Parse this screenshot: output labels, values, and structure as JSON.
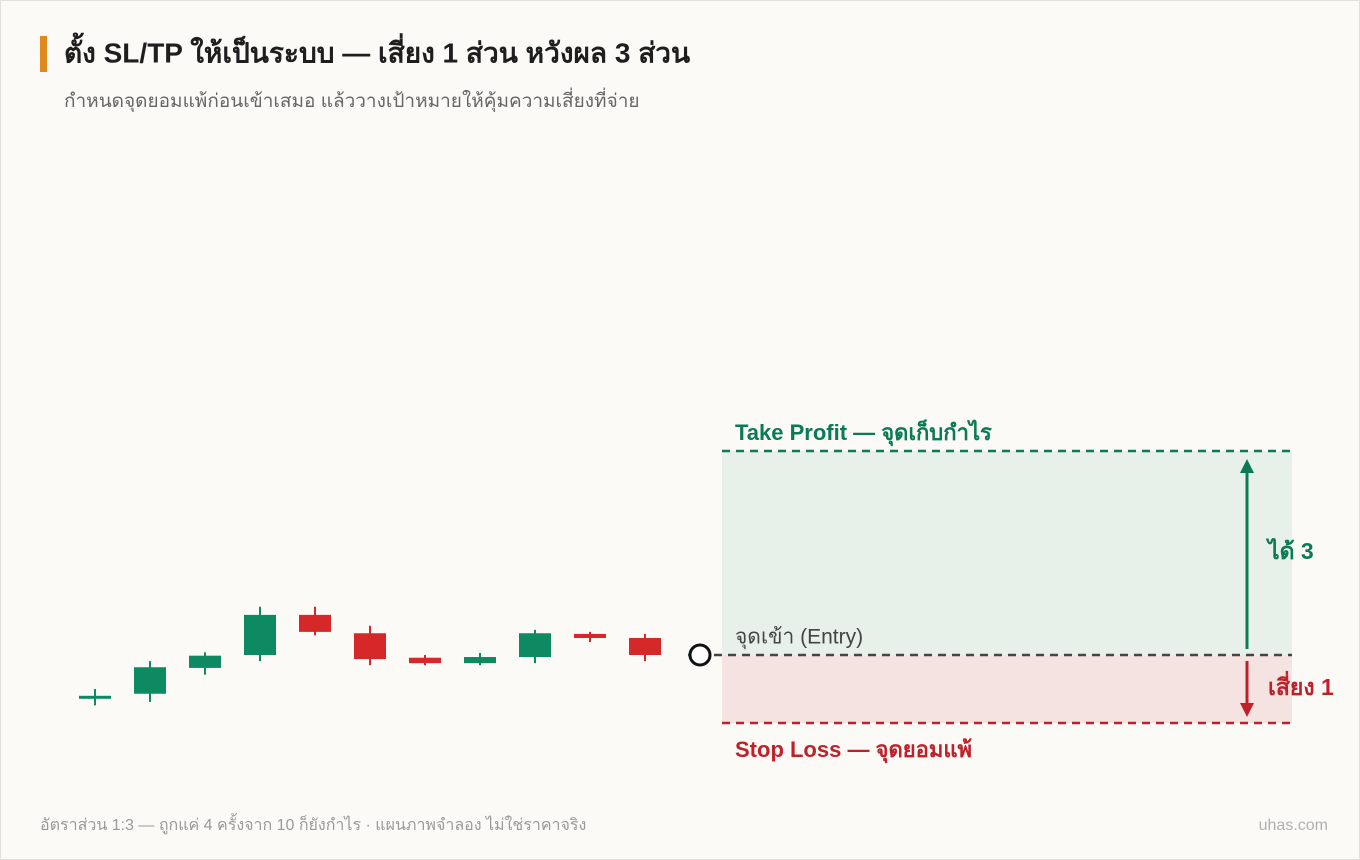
{
  "chart_data": {
    "type": "candlestick",
    "title": "ตั้ง SL/TP ให้เป็นระบบ — เสี่ยง 1 ส่วน หวังผล 3 ส่วน",
    "subtitle": "กำหนดจุดยอมแพ้ก่อนเข้าเสมอ แล้ววางเป้าหมายให้คุ้มความเสี่ยงที่จ่าย",
    "footer": "อัตราส่วน 1:3 — ถูกแค่ 4 ครั้งจาก 10 ก็ยังกำไร · แผนภาพจำลอง ไม่ใช่ราคาจริง",
    "watermark": "uhas.com",
    "ylim": [
      98.5,
      104
    ],
    "up_color": "#0e8a63",
    "down_color": "#d62828",
    "candles": [
      {
        "open": 99.37,
        "high": 99.5,
        "low": 99.26,
        "close": 99.4
      },
      {
        "open": 99.43,
        "high": 99.91,
        "low": 99.31,
        "close": 99.82
      },
      {
        "open": 99.81,
        "high": 100.04,
        "low": 99.71,
        "close": 99.99
      },
      {
        "open": 100.0,
        "high": 100.71,
        "low": 99.91,
        "close": 100.59
      },
      {
        "open": 100.59,
        "high": 100.71,
        "low": 100.29,
        "close": 100.34
      },
      {
        "open": 100.32,
        "high": 100.43,
        "low": 99.85,
        "close": 99.94
      },
      {
        "open": 99.96,
        "high": 100.0,
        "low": 99.85,
        "close": 99.88
      },
      {
        "open": 99.88,
        "high": 100.03,
        "low": 99.85,
        "close": 99.97
      },
      {
        "open": 99.97,
        "high": 100.37,
        "low": 99.88,
        "close": 100.32
      },
      {
        "open": 100.31,
        "high": 100.34,
        "low": 100.19,
        "close": 100.25
      },
      {
        "open": 100.25,
        "high": 100.31,
        "low": 99.91,
        "close": 100.0
      }
    ],
    "take_profit": {
      "label": "Take Profit — จุดเก็บกำไร",
      "value": 103,
      "color": "#0b7a55"
    },
    "entry": {
      "label": "จุดเข้า (Entry)",
      "value": 100,
      "color": "#444444"
    },
    "stop_loss": {
      "label": "Stop Loss — จุดยอมแพ้",
      "value": 99,
      "color": "#c0202a"
    },
    "reward_label": "ได้ 3",
    "risk_label": "เสี่ยง 1"
  }
}
